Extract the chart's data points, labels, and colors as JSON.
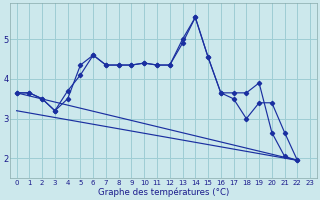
{
  "xlabel": "Graphe des températures (°C)",
  "background_color": "#cce8ec",
  "grid_color": "#9ecdd4",
  "line_color": "#1a2fa0",
  "ylim": [
    1.5,
    5.9
  ],
  "xlim": [
    -0.5,
    23.5
  ],
  "yticks": [
    2,
    3,
    4,
    5
  ],
  "xticks": [
    0,
    1,
    2,
    3,
    4,
    5,
    6,
    7,
    8,
    9,
    10,
    11,
    12,
    13,
    14,
    15,
    16,
    17,
    18,
    19,
    20,
    21,
    22,
    23
  ],
  "line1_x": [
    0,
    1,
    2,
    3,
    4,
    5,
    6,
    7,
    8,
    9,
    10,
    11,
    12,
    13,
    14,
    15,
    16,
    17,
    18,
    19,
    20,
    21,
    22
  ],
  "line1_y": [
    3.65,
    3.65,
    3.5,
    3.2,
    3.5,
    4.35,
    4.6,
    4.35,
    4.35,
    4.35,
    4.4,
    4.35,
    4.35,
    4.9,
    5.55,
    4.55,
    3.65,
    3.65,
    3.65,
    3.9,
    2.65,
    2.05,
    1.95
  ],
  "line2_x": [
    0,
    1,
    2,
    3,
    4,
    5,
    6,
    7,
    8,
    9,
    10,
    11,
    12,
    13,
    14,
    15,
    16,
    17,
    18,
    19,
    20,
    21,
    22
  ],
  "line2_y": [
    3.65,
    3.65,
    3.5,
    3.2,
    3.7,
    4.1,
    4.6,
    4.35,
    4.35,
    4.35,
    4.4,
    4.35,
    4.35,
    5.0,
    5.55,
    4.55,
    3.65,
    3.5,
    3.0,
    3.4,
    3.4,
    2.65,
    1.95
  ],
  "line3_x": [
    0,
    22
  ],
  "line3_y": [
    3.65,
    1.95
  ],
  "line4_x": [
    0,
    22
  ],
  "line4_y": [
    3.2,
    1.95
  ]
}
